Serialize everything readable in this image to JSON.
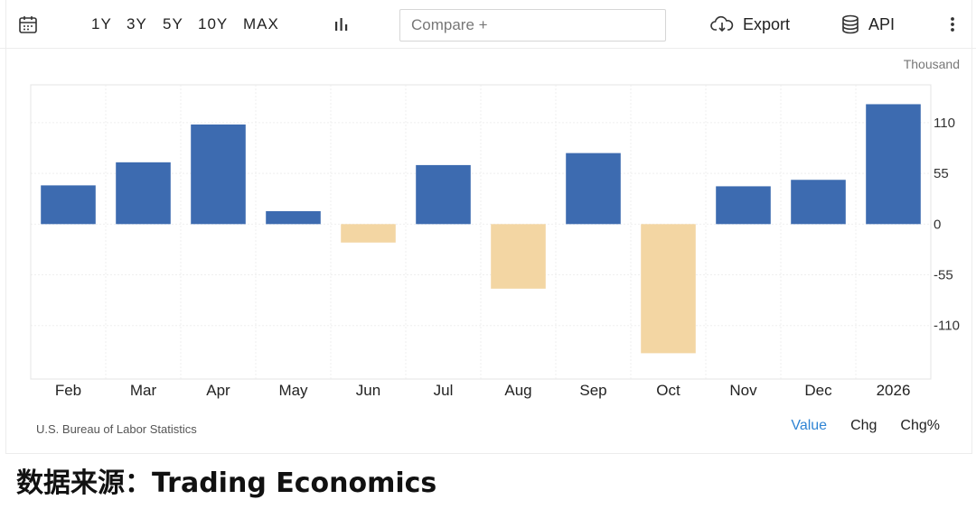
{
  "toolbar": {
    "ranges": [
      "1Y",
      "3Y",
      "5Y",
      "10Y",
      "MAX"
    ],
    "compare_placeholder": "Compare +",
    "export_label": "Export",
    "api_label": "API"
  },
  "unit_label": "Thousand",
  "source_label": "U.S. Bureau of Labor Statistics",
  "modes": [
    "Value",
    "Chg",
    "Chg%"
  ],
  "active_mode": "Value",
  "caption": "数据来源：Trading Economics",
  "colors": {
    "positive": "#3d6bb0",
    "negative": "#f3d6a3",
    "active_mode": "#2f84d4"
  },
  "chart_data": {
    "type": "bar",
    "categories": [
      "Feb",
      "Mar",
      "Apr",
      "May",
      "Jun",
      "Jul",
      "Aug",
      "Sep",
      "Oct",
      "Nov",
      "Dec",
      "2026"
    ],
    "values": [
      42,
      67,
      108,
      14,
      -20,
      64,
      -70,
      77,
      -140,
      41,
      48,
      130
    ],
    "yticks": [
      110,
      55,
      0,
      -55,
      -110
    ],
    "ylim": [
      -168,
      151
    ],
    "xlabel": "",
    "ylabel": "",
    "grid": true
  }
}
